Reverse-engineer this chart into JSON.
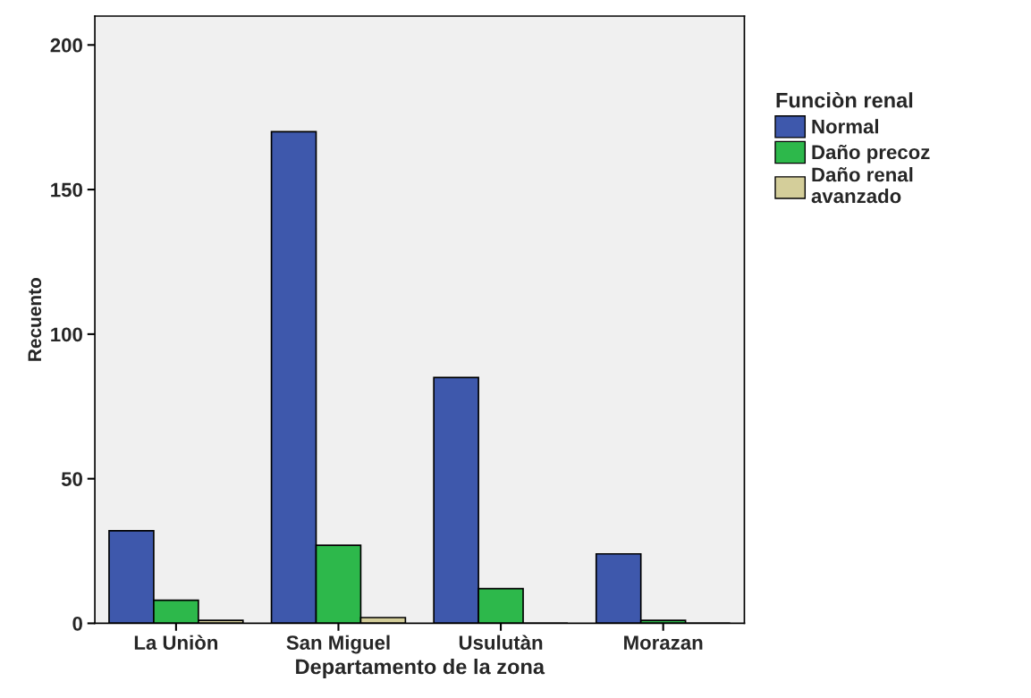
{
  "chart_data": {
    "type": "bar",
    "xlabel": "Departamento de la zona",
    "ylabel": "Recuento",
    "categories": [
      "La Uniòn",
      "San Miguel",
      "Usulutàn",
      "Morazan"
    ],
    "series": [
      {
        "name": "Normal",
        "color": "#3e58ac",
        "values": [
          32,
          170,
          85,
          24
        ]
      },
      {
        "name": "Daño precoz",
        "color": "#2db84b",
        "values": [
          8,
          27,
          12,
          1
        ]
      },
      {
        "name": "Daño renal\navanzado",
        "color": "#d4ce9a",
        "values": [
          1,
          2,
          0,
          0
        ]
      }
    ],
    "legend_title": "Funciòn renal",
    "legend": "right",
    "ylim": [
      0,
      210
    ],
    "yticks": [
      0,
      50,
      100,
      150,
      200
    ],
    "grid": false
  }
}
